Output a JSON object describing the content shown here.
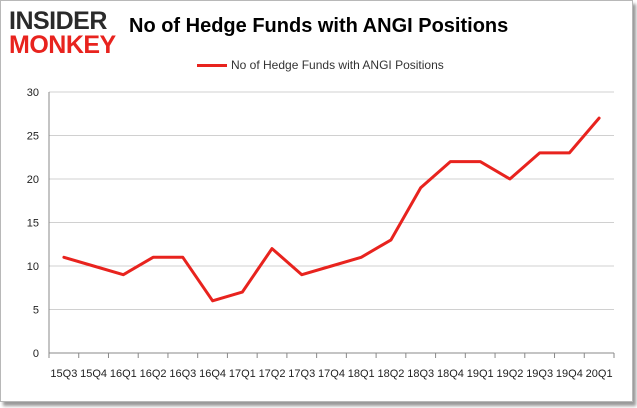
{
  "logo": {
    "line1": "INSIDER",
    "line2": "MONKEY"
  },
  "colors": {
    "series": "#e8231e",
    "grid": "#d0d0d0",
    "axis": "#888888",
    "logo_dark": "#2a2a2a",
    "logo_red": "#e8231e"
  },
  "chart_data": {
    "type": "line",
    "title": "No of Hedge Funds with ANGI Positions",
    "xlabel": "",
    "ylabel": "",
    "ylim": [
      0,
      30
    ],
    "yticks": [
      0,
      5,
      10,
      15,
      20,
      25,
      30
    ],
    "grid": true,
    "legend_position": "top-center",
    "categories": [
      "15Q3",
      "15Q4",
      "16Q1",
      "16Q2",
      "16Q3",
      "16Q4",
      "17Q1",
      "17Q2",
      "17Q3",
      "17Q4",
      "18Q1",
      "18Q2",
      "18Q3",
      "18Q4",
      "19Q1",
      "19Q2",
      "19Q3",
      "19Q4",
      "20Q1"
    ],
    "series": [
      {
        "name": "No of Hedge Funds with ANGI Positions",
        "values": [
          11,
          10,
          9,
          11,
          11,
          6,
          7,
          12,
          9,
          10,
          11,
          13,
          19,
          22,
          22,
          20,
          23,
          23,
          27
        ]
      }
    ]
  }
}
